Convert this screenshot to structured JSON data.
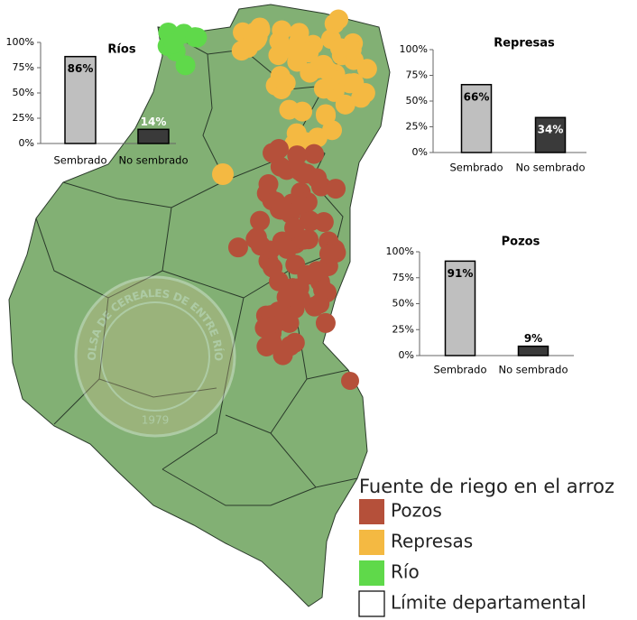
{
  "chart_data": [
    {
      "type": "bar",
      "title": "Ríos",
      "categories": [
        "Sembrado",
        "No sembrado"
      ],
      "values": [
        86,
        14
      ],
      "value_labels": [
        "86%",
        "14%"
      ],
      "colors": [
        "#bfbfbf",
        "#3a3a3a"
      ],
      "label_colors": [
        "#000000",
        "#ffffff"
      ],
      "ylim": [
        0,
        100
      ],
      "yticks": [
        {
          "value": 0,
          "label": "0%"
        },
        {
          "value": 25,
          "label": "25%"
        },
        {
          "value": 50,
          "label": "50%"
        },
        {
          "value": 75,
          "label": "75%"
        },
        {
          "value": 100,
          "label": "100%"
        }
      ]
    },
    {
      "type": "bar",
      "title": "Represas",
      "categories": [
        "Sembrado",
        "No sembrado"
      ],
      "values": [
        66,
        34
      ],
      "value_labels": [
        "66%",
        "34%"
      ],
      "colors": [
        "#bfbfbf",
        "#3a3a3a"
      ],
      "label_colors": [
        "#000000",
        "#ffffff"
      ],
      "ylim": [
        0,
        100
      ],
      "yticks": [
        {
          "value": 0,
          "label": "0%"
        },
        {
          "value": 25,
          "label": "25%"
        },
        {
          "value": 50,
          "label": "50%"
        },
        {
          "value": 75,
          "label": "75%"
        },
        {
          "value": 100,
          "label": "100%"
        }
      ]
    },
    {
      "type": "bar",
      "title": "Pozos",
      "categories": [
        "Sembrado",
        "No sembrado"
      ],
      "values": [
        91,
        9
      ],
      "value_labels": [
        "91%",
        "9%"
      ],
      "colors": [
        "#bfbfbf",
        "#3a3a3a"
      ],
      "label_colors": [
        "#000000",
        "#000000"
      ],
      "ylim": [
        0,
        100
      ],
      "yticks": [
        {
          "value": 0,
          "label": "0%"
        },
        {
          "value": 25,
          "label": "25%"
        },
        {
          "value": 50,
          "label": "50%"
        },
        {
          "value": 75,
          "label": "75%"
        },
        {
          "value": 100,
          "label": "100%"
        }
      ]
    }
  ],
  "watermark": {
    "name": "BOLSA DE CEREALES DE ENTRE RÍOS",
    "year": "1979"
  },
  "legend": {
    "title": "Fuente de riego en el arroz",
    "items": [
      {
        "label": "Pozos",
        "color": "#b5503a"
      },
      {
        "label": "Represas",
        "color": "#f4b942"
      },
      {
        "label": "Río",
        "color": "#5fd94a"
      },
      {
        "label": "Límite departamental",
        "color": "#ffffff"
      }
    ]
  }
}
